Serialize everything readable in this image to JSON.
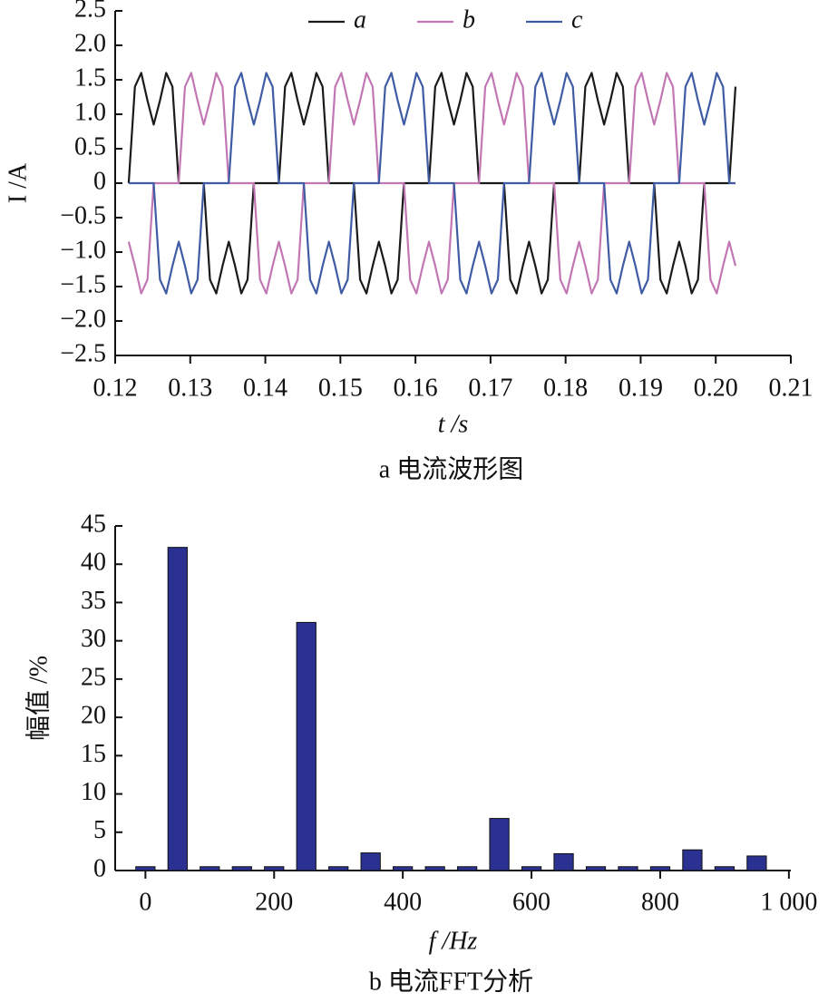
{
  "chart_data": [
    {
      "type": "line",
      "caption": "a 电流波形图",
      "xlabel": "t /s",
      "ylabel": "I /A",
      "legend": "top",
      "xlim": [
        0.12,
        0.21
      ],
      "xticks": [
        0.12,
        0.13,
        0.14,
        0.15,
        0.16,
        0.17,
        0.18,
        0.19,
        {
          "value": 0.2,
          "label": "0.20"
        },
        0.21
      ],
      "ylim": [
        -2.5,
        2.5
      ],
      "yticks": [
        {
          "value": -2.5,
          "label": "−2.5"
        },
        {
          "value": -2,
          "label": "−2.0"
        },
        {
          "value": -1.5,
          "label": "−1.5"
        },
        {
          "value": -1,
          "label": "−1.0"
        },
        {
          "value": -0.5,
          "label": "−0.5"
        },
        0,
        0.5,
        {
          "value": 1,
          "label": "1.0"
        },
        1.5,
        {
          "value": 2,
          "label": "2.0"
        },
        2.5
      ],
      "x": [
        0.1218,
        0.12263,
        0.12347,
        0.1243,
        0.12513,
        0.12597,
        0.1268,
        0.12763,
        0.12847,
        0.1293,
        0.13013,
        0.13097,
        0.1318,
        0.13263,
        0.13347,
        0.1343,
        0.13513,
        0.13597,
        0.1368,
        0.13763,
        0.13847,
        0.1393,
        0.14013,
        0.14097,
        0.1418,
        0.14263,
        0.14347,
        0.1443,
        0.14513,
        0.14597,
        0.1468,
        0.14763,
        0.14847,
        0.1493,
        0.15013,
        0.15097,
        0.1518,
        0.15263,
        0.15347,
        0.1543,
        0.15513,
        0.15597,
        0.1568,
        0.15763,
        0.15847,
        0.1593,
        0.16013,
        0.16097,
        0.1618,
        0.16263,
        0.16347,
        0.1643,
        0.16513,
        0.16597,
        0.1668,
        0.16763,
        0.16847,
        0.1693,
        0.17013,
        0.17097,
        0.1718,
        0.17263,
        0.17347,
        0.1743,
        0.17513,
        0.17597,
        0.1768,
        0.17763,
        0.17847,
        0.1793,
        0.18013,
        0.18097,
        0.1818,
        0.18263,
        0.18347,
        0.1843,
        0.18513,
        0.18597,
        0.1868,
        0.18763,
        0.18847,
        0.1893,
        0.19013,
        0.19097,
        0.1918,
        0.19263,
        0.19347,
        0.1943,
        0.19513,
        0.19597,
        0.1968,
        0.19763,
        0.19847,
        0.1993,
        0.20013,
        0.20097,
        0.2018,
        0.20263
      ],
      "series": [
        {
          "name": "a",
          "color": "#1a1a1a",
          "values": [
            0,
            1.4,
            1.6,
            1.2,
            0.85,
            1.2,
            1.6,
            1.4,
            0,
            0,
            0,
            0,
            0,
            -1.4,
            -1.6,
            -1.2,
            -0.85,
            -1.2,
            -1.6,
            -1.4,
            0,
            0,
            0,
            0,
            0,
            1.4,
            1.6,
            1.2,
            0.85,
            1.2,
            1.6,
            1.4,
            0,
            0,
            0,
            0,
            0,
            -1.4,
            -1.6,
            -1.2,
            -0.85,
            -1.2,
            -1.6,
            -1.4,
            0,
            0,
            0,
            0,
            0,
            1.4,
            1.6,
            1.2,
            0.85,
            1.2,
            1.6,
            1.4,
            0,
            0,
            0,
            0,
            0,
            -1.4,
            -1.6,
            -1.2,
            -0.85,
            -1.2,
            -1.6,
            -1.4,
            0,
            0,
            0,
            0,
            0,
            1.4,
            1.6,
            1.2,
            0.85,
            1.2,
            1.6,
            1.4,
            0,
            0,
            0,
            0,
            0,
            -1.4,
            -1.6,
            -1.2,
            -0.85,
            -1.2,
            -1.6,
            -1.4,
            0,
            0,
            0,
            0,
            0,
            1.4
          ]
        },
        {
          "name": "b",
          "color": "#c277b4",
          "values": [
            -0.85,
            -1.2,
            -1.6,
            -1.4,
            0,
            0,
            0,
            0,
            0,
            1.4,
            1.6,
            1.2,
            0.85,
            1.2,
            1.6,
            1.4,
            0,
            0,
            0,
            0,
            0,
            -1.4,
            -1.6,
            -1.2,
            -0.85,
            -1.2,
            -1.6,
            -1.4,
            0,
            0,
            0,
            0,
            0,
            1.4,
            1.6,
            1.2,
            0.85,
            1.2,
            1.6,
            1.4,
            0,
            0,
            0,
            0,
            0,
            -1.4,
            -1.6,
            -1.2,
            -0.85,
            -1.2,
            -1.6,
            -1.4,
            0,
            0,
            0,
            0,
            0,
            1.4,
            1.6,
            1.2,
            0.85,
            1.2,
            1.6,
            1.4,
            0,
            0,
            0,
            0,
            0,
            -1.4,
            -1.6,
            -1.2,
            -0.85,
            -1.2,
            -1.6,
            -1.4,
            0,
            0,
            0,
            0,
            0,
            1.4,
            1.6,
            1.2,
            0.85,
            1.2,
            1.6,
            1.4,
            0,
            0,
            0,
            0,
            0,
            -1.4,
            -1.6,
            -1.2,
            -0.85,
            -1.2
          ]
        },
        {
          "name": "c",
          "color": "#3f5ba3",
          "values": [
            0,
            0,
            0,
            0,
            0,
            -1.4,
            -1.6,
            -1.2,
            -0.85,
            -1.2,
            -1.6,
            -1.4,
            0,
            0,
            0,
            0,
            0,
            1.4,
            1.6,
            1.2,
            0.85,
            1.2,
            1.6,
            1.4,
            0,
            0,
            0,
            0,
            0,
            -1.4,
            -1.6,
            -1.2,
            -0.85,
            -1.2,
            -1.6,
            -1.4,
            0,
            0,
            0,
            0,
            0,
            1.4,
            1.6,
            1.2,
            0.85,
            1.2,
            1.6,
            1.4,
            0,
            0,
            0,
            0,
            0,
            -1.4,
            -1.6,
            -1.2,
            -0.85,
            -1.2,
            -1.6,
            -1.4,
            0,
            0,
            0,
            0,
            0,
            1.4,
            1.6,
            1.2,
            0.85,
            1.2,
            1.6,
            1.4,
            0,
            0,
            0,
            0,
            0,
            -1.4,
            -1.6,
            -1.2,
            -0.85,
            -1.2,
            -1.6,
            -1.4,
            0,
            0,
            0,
            0,
            0,
            1.4,
            1.6,
            1.2,
            0.85,
            1.2,
            1.6,
            1.4,
            0,
            0
          ]
        }
      ]
    },
    {
      "type": "bar",
      "caption": "b 电流FFT分析",
      "xlabel": "f /Hz",
      "ylabel": "幅值 /%",
      "color": "#2b3190",
      "xlim": [
        -47,
        1003
      ],
      "xticks": [
        0,
        200,
        400,
        600,
        800,
        {
          "value": 1000,
          "label": "1 000"
        }
      ],
      "ylim": [
        0,
        45
      ],
      "yticks": [
        0,
        5,
        10,
        15,
        20,
        25,
        30,
        35,
        40,
        45
      ],
      "x": [
        0,
        50,
        100,
        150,
        200,
        250,
        300,
        350,
        400,
        450,
        500,
        550,
        600,
        650,
        700,
        750,
        800,
        850,
        900,
        950
      ],
      "values": [
        0.5,
        42.2,
        0.5,
        0.5,
        0.5,
        32.4,
        0.5,
        2.3,
        0.5,
        0.5,
        0.5,
        6.8,
        0.5,
        2.2,
        0.5,
        0.5,
        0.5,
        2.7,
        0.5,
        1.9
      ]
    }
  ]
}
